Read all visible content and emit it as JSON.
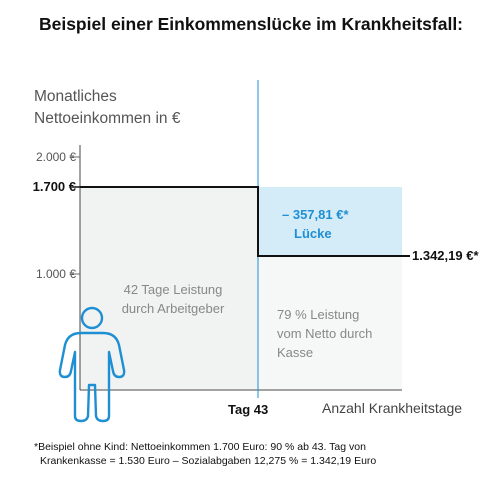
{
  "title": "Beispiel einer Einkommenslücke im Krankheitsfall:",
  "y_axis": {
    "label_line1": "Monatliches",
    "label_line2": "Nettoeinkommen in €",
    "ticks": [
      {
        "label": "2.000 €",
        "value": 2000,
        "bold": false
      },
      {
        "label": "1.700 €",
        "value": 1700,
        "bold": true
      },
      {
        "label": "1.000 €",
        "value": 1000,
        "bold": false
      }
    ]
  },
  "x_axis": {
    "marker_label": "Tag 43",
    "axis_label": "Anzahl Krankheitstage"
  },
  "regions": {
    "employer_line1": "42 Tage Leistung",
    "employer_line2": "durch Arbeitgeber",
    "insurance_line1": "79 % Leistung",
    "insurance_line2": "vom Netto durch",
    "insurance_line3": "Kasse",
    "gap_amount": "– 357,81 €*",
    "gap_label": "Lücke"
  },
  "reduced_income_label": "1.342,19 €*",
  "footnote": {
    "line1": "*Beispiel ohne Kind: Nettoeinkommen 1.700 Euro: 90 % ab 43. Tag von",
    "line2": "Krankenkasse = 1.530 Euro – Sozialabgaben 12,275 % = 1.342,19 Euro"
  },
  "colors": {
    "gap_fill": "#d4ebf8",
    "gap_text": "#1f8fd3",
    "person_stroke": "#1f8fd3",
    "income_line": "#111111"
  },
  "icons": {
    "person": "person-outline-icon"
  }
}
